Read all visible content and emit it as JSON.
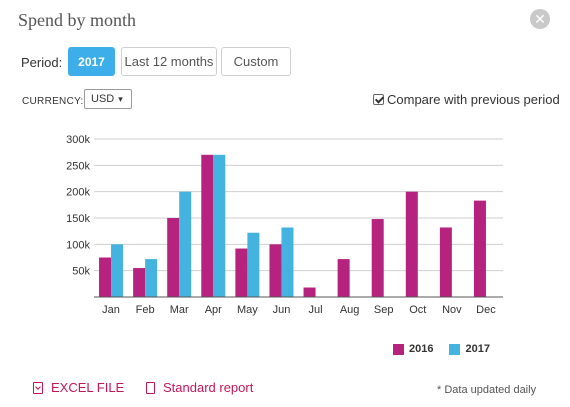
{
  "header": {
    "title": "Spend by month",
    "close_glyph": "✕"
  },
  "period": {
    "label": "Period:",
    "options": [
      "2017",
      "Last 12 months",
      "Custom"
    ],
    "selected": "2017"
  },
  "currency": {
    "label": "CURRENCY:",
    "value": "USD",
    "caret": "▾"
  },
  "compare": {
    "label": "Compare with previous period",
    "checked": true
  },
  "colors": {
    "series_2016": "#b5237e",
    "series_2017": "#45b3e0",
    "link": "#c2185b"
  },
  "chart_data": {
    "type": "bar",
    "categories": [
      "Jan",
      "Feb",
      "Mar",
      "Apr",
      "May",
      "Jun",
      "Jul",
      "Aug",
      "Sep",
      "Oct",
      "Nov",
      "Dec"
    ],
    "series": [
      {
        "name": "2016",
        "values": [
          75000,
          55000,
          150000,
          270000,
          92000,
          100000,
          18000,
          72000,
          148000,
          200000,
          132000,
          183000
        ]
      },
      {
        "name": "2017",
        "values": [
          100000,
          72000,
          200000,
          270000,
          122000,
          132000,
          null,
          null,
          null,
          null,
          null,
          null
        ]
      }
    ],
    "yticks": [
      "50k",
      "100k",
      "150k",
      "200k",
      "250k",
      "300k"
    ],
    "ylim": [
      0,
      300000
    ],
    "grid": true,
    "legend_position": "bottom-right"
  },
  "legend": {
    "items": [
      "2016",
      "2017"
    ]
  },
  "footer": {
    "excel_label": "EXCEL FILE",
    "report_label": "Standard report",
    "note": "* Data updated daily"
  }
}
